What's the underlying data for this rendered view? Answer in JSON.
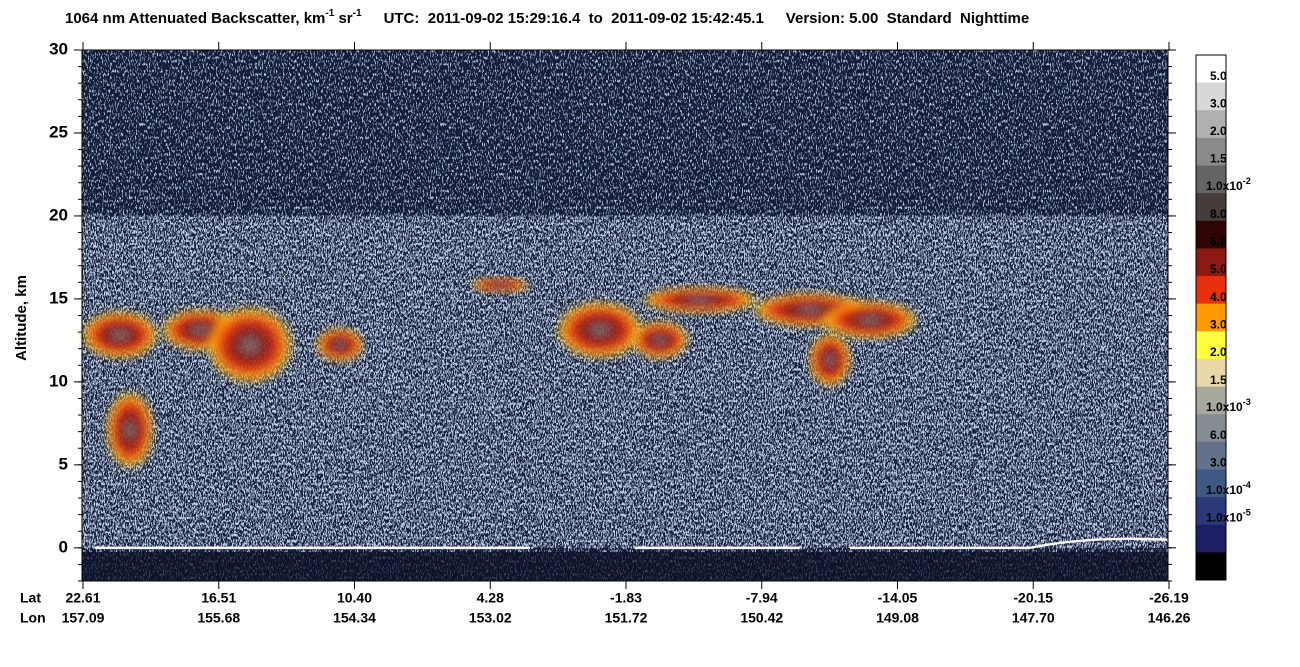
{
  "chart_data": {
    "type": "heatmap",
    "title": {
      "main": "1064 nm Attenuated Backscatter, km",
      "sup1": "-1",
      "unit2": " sr",
      "sup2": "-1",
      "utc": "UTC:  2011-09-02 15:29:16.4  to  2011-09-02 15:42:45.1",
      "version": "Version: 5.00  Standard  Nighttime"
    },
    "ylabel": "Altitude, km",
    "ylim": [
      -2,
      30
    ],
    "yticks": [
      0,
      5,
      10,
      15,
      20,
      25,
      30
    ],
    "x_rows": {
      "lat": "Lat",
      "lon": "Lon"
    },
    "x_labels": {
      "lat": [
        "22.61",
        "16.51",
        "10.40",
        "4.28",
        "-1.83",
        "-7.94",
        "-14.05",
        "-20.15",
        "-26.19"
      ],
      "lon": [
        "157.09",
        "155.68",
        "154.34",
        "153.02",
        "151.72",
        "150.42",
        "149.08",
        "147.70",
        "146.26"
      ]
    },
    "colorbar": {
      "colors": [
        "#ffffff",
        "#d8d8d8",
        "#b0b0b0",
        "#8a8a8a",
        "#646464",
        "#463c3a",
        "#2e0404",
        "#8c1a12",
        "#e8300e",
        "#ff9a00",
        "#ffff40",
        "#e8d8a8",
        "#a8a89c",
        "#848c94",
        "#62728a",
        "#405884",
        "#283a78",
        "#1e1e66",
        "#000000"
      ],
      "labels": [
        "5.0",
        "3.0",
        "2.0",
        "1.5",
        {
          "text": "1.0x10",
          "sup": "-2"
        },
        "8.0",
        "6.0",
        "5.0",
        "4.0",
        "3.0",
        "2.0",
        "1.5",
        {
          "text": "1.0x10",
          "sup": "-3"
        },
        "6.0",
        "3.0",
        {
          "text": "1.0x10",
          "sup": "-4"
        },
        {
          "text": "1.0x10",
          "sup": "-5"
        }
      ]
    }
  }
}
